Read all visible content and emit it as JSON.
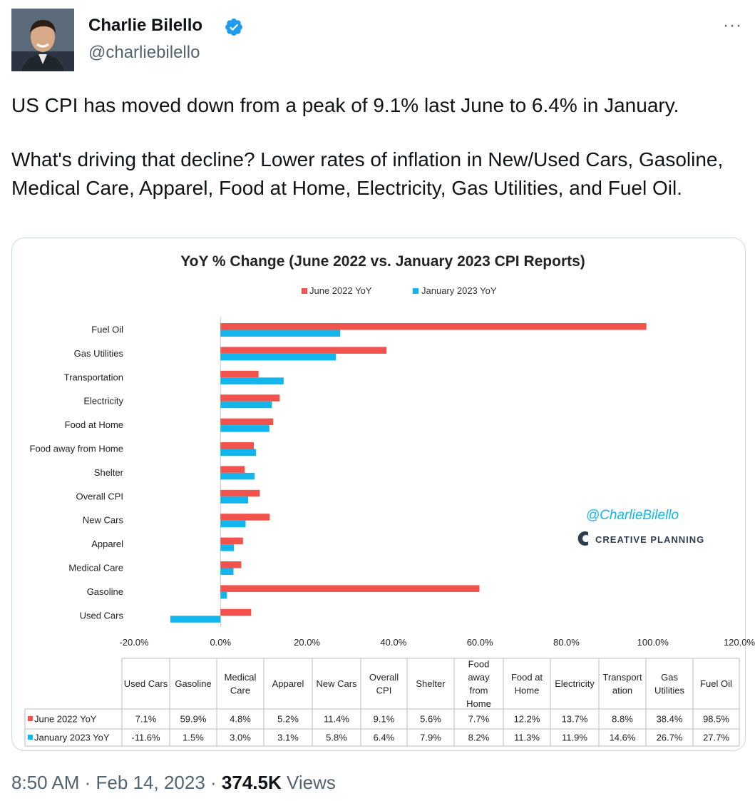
{
  "tweet": {
    "author_name": "Charlie Bilello",
    "handle": "@charliebilello",
    "more_label": "···",
    "text_p1": "US CPI has moved down from a peak of 9.1% last June to 6.4% in January.",
    "text_p2": "What's driving that decline? Lower rates of inflation in New/Used Cars, Gasoline, Medical Care, Apparel, Food at Home, Electricity, Gas Utilities, and Fuel Oil.",
    "time": "8:50 AM",
    "date": "Feb 14, 2023",
    "views_count": "374.5K",
    "views_label": "Views",
    "separator": "·"
  },
  "watermark": {
    "handle": "@CharlieBilello",
    "brand": "CREATIVE PLANNING"
  },
  "colors": {
    "june": "#f1524b",
    "jan": "#12b6ec",
    "verified": "#1d9bf0"
  },
  "chart_data": {
    "type": "bar",
    "orientation": "horizontal",
    "title": "YoY % Change (June 2022 vs. January 2023 CPI Reports)",
    "legend_position": "top",
    "grid": false,
    "xlim": [
      -20,
      120
    ],
    "x_ticks": [
      "-20.0%",
      "0.0%",
      "20.0%",
      "40.0%",
      "60.0%",
      "80.0%",
      "100.0%",
      "120.0%"
    ],
    "categories": [
      "Fuel Oil",
      "Gas Utilities",
      "Transportation",
      "Electricity",
      "Food at Home",
      "Food away from Home",
      "Shelter",
      "Overall CPI",
      "New Cars",
      "Apparel",
      "Medical Care",
      "Gasoline",
      "Used Cars"
    ],
    "series": [
      {
        "name": "June 2022 YoY",
        "values": [
          98.5,
          38.4,
          8.8,
          13.7,
          12.2,
          7.7,
          5.6,
          9.1,
          11.4,
          5.2,
          4.8,
          59.9,
          7.1
        ]
      },
      {
        "name": "January 2023 YoY",
        "values": [
          27.7,
          26.7,
          14.6,
          11.9,
          11.3,
          8.2,
          7.9,
          6.4,
          5.8,
          3.1,
          3.0,
          1.5,
          -11.6
        ]
      }
    ],
    "table": {
      "columns": [
        [
          "Used Cars"
        ],
        [
          "Gasoline"
        ],
        [
          "Medical",
          "Care"
        ],
        [
          "Apparel"
        ],
        [
          "New Cars"
        ],
        [
          "Overall",
          "CPI"
        ],
        [
          "Shelter"
        ],
        [
          "Food",
          "away",
          "from",
          "Home"
        ],
        [
          "Food at",
          "Home"
        ],
        [
          "Electricity"
        ],
        [
          "Transport",
          "ation"
        ],
        [
          "Gas",
          "Utilities"
        ],
        [
          "Fuel Oil"
        ]
      ],
      "rows": [
        {
          "label": "June 2022 YoY",
          "cells": [
            "7.1%",
            "59.9%",
            "4.8%",
            "5.2%",
            "11.4%",
            "9.1%",
            "5.6%",
            "7.7%",
            "12.2%",
            "13.7%",
            "8.8%",
            "38.4%",
            "98.5%"
          ]
        },
        {
          "label": "January 2023 YoY",
          "cells": [
            "-11.6%",
            "1.5%",
            "3.0%",
            "3.1%",
            "5.8%",
            "6.4%",
            "7.9%",
            "8.2%",
            "11.3%",
            "11.9%",
            "14.6%",
            "26.7%",
            "27.7%"
          ]
        }
      ]
    }
  }
}
